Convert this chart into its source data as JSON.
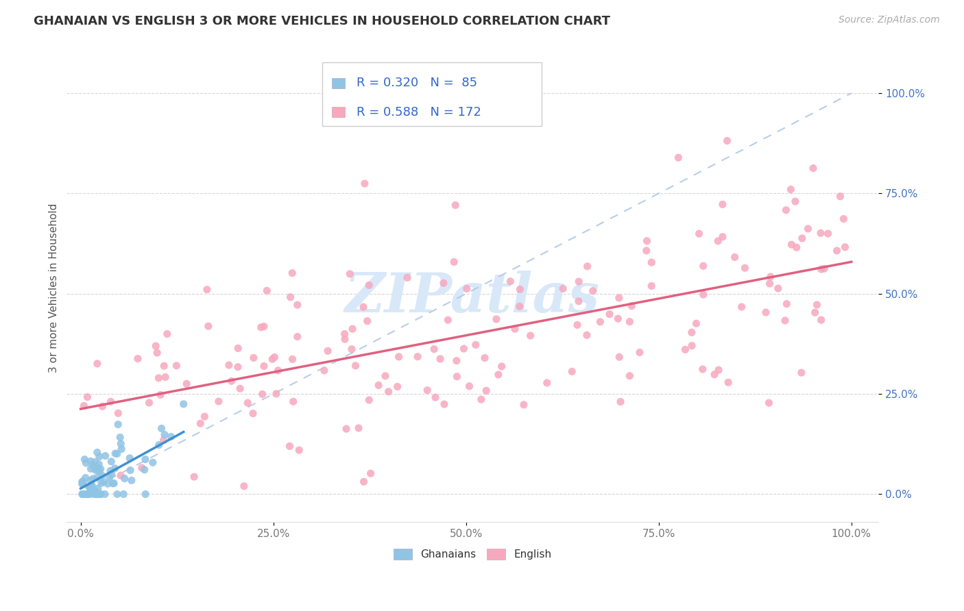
{
  "title": "GHANAIAN VS ENGLISH 3 OR MORE VEHICLES IN HOUSEHOLD CORRELATION CHART",
  "source_text": "Source: ZipAtlas.com",
  "ylabel": "3 or more Vehicles in Household",
  "x_ticks": [
    0.0,
    0.25,
    0.5,
    0.75,
    1.0
  ],
  "y_ticks": [
    0.0,
    0.25,
    0.5,
    0.75,
    1.0
  ],
  "x_tick_labels": [
    "0.0%",
    "25.0%",
    "50.0%",
    "75.0%",
    "100.0%"
  ],
  "y_tick_labels": [
    "0.0%",
    "25.0%",
    "50.0%",
    "75.0%",
    "100.0%"
  ],
  "ghanaian_color": "#90c4e4",
  "english_color": "#f7a8be",
  "ghanaian_line_color": "#4090d0",
  "english_line_color": "#e06080",
  "diag_color": "#b0c8e8",
  "ghanaian_R": 0.32,
  "ghanaian_N": 85,
  "english_R": 0.588,
  "english_N": 172,
  "legend_text_color": "#3366cc",
  "tick_color_y": "#4472c4",
  "tick_color_x": "#777777",
  "watermark_color": "#d8e8f8",
  "background_color": "#ffffff",
  "title_color": "#333333",
  "source_color": "#aaaaaa",
  "ylabel_color": "#555555"
}
